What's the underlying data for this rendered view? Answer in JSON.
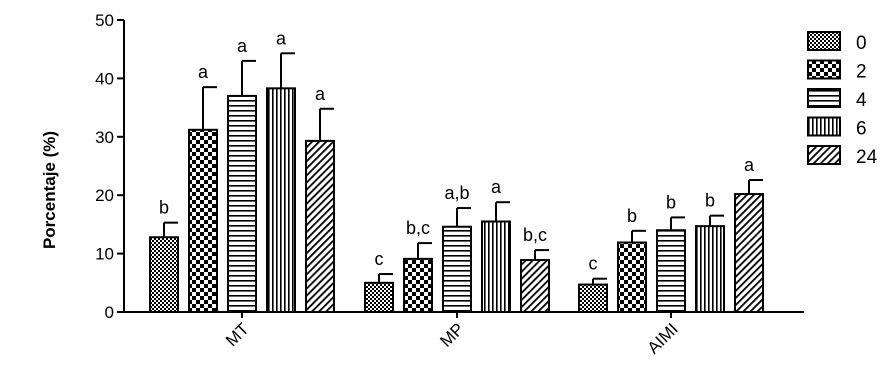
{
  "chart_data": {
    "type": "bar",
    "title": "",
    "xlabel": "",
    "ylabel": "Porcentaje (%)",
    "ylim": [
      0,
      50
    ],
    "yticks": [
      "0",
      "10",
      "20",
      "30",
      "40",
      "50"
    ],
    "categories": [
      "MT",
      "MP",
      "AIMI"
    ],
    "legend_position": "right",
    "series": [
      {
        "name": "0",
        "pattern": "fine-checker",
        "values": [
          12.8,
          5.0,
          4.7
        ],
        "errors": [
          2.5,
          1.5,
          1.0
        ],
        "labels": [
          "b",
          "c",
          "c"
        ]
      },
      {
        "name": "2",
        "pattern": "large-checker",
        "values": [
          31.2,
          9.1,
          11.9
        ],
        "errors": [
          7.3,
          2.7,
          2.0
        ],
        "labels": [
          "a",
          "b,c",
          "b"
        ]
      },
      {
        "name": "4",
        "pattern": "horizontal",
        "values": [
          37.0,
          14.6,
          14.0
        ],
        "errors": [
          6.0,
          3.2,
          2.2
        ],
        "labels": [
          "a",
          "a,b",
          "b"
        ]
      },
      {
        "name": "6",
        "pattern": "vertical",
        "values": [
          38.3,
          15.5,
          14.7
        ],
        "errors": [
          6.0,
          3.3,
          1.8
        ],
        "labels": [
          "a",
          "a",
          "b"
        ]
      },
      {
        "name": "24",
        "pattern": "diagonal",
        "values": [
          29.3,
          8.9,
          20.2
        ],
        "errors": [
          5.5,
          1.7,
          2.4
        ],
        "labels": [
          "a",
          "b,c",
          "a"
        ]
      }
    ]
  }
}
